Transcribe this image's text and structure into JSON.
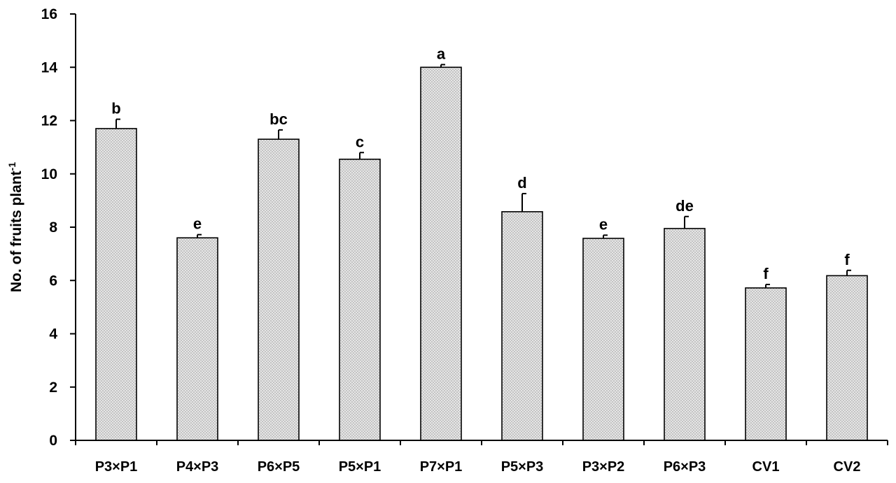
{
  "chart_data": {
    "type": "bar",
    "categories": [
      "P3×P1",
      "P4×P3",
      "P6×P5",
      "P5×P1",
      "P7×P1",
      "P5×P3",
      "P3×P2",
      "P6×P3",
      "CV1",
      "CV2"
    ],
    "values": [
      11.7,
      7.6,
      11.3,
      10.55,
      14.0,
      8.58,
      7.58,
      7.95,
      5.72,
      6.18
    ],
    "errors": [
      0.35,
      0.12,
      0.35,
      0.25,
      0.1,
      0.68,
      0.12,
      0.45,
      0.13,
      0.2
    ],
    "significance_letters": [
      "b",
      "e",
      "bc",
      "c",
      "a",
      "d",
      "e",
      "de",
      "f",
      "f"
    ],
    "xlabel": "",
    "ylabel": "No. of fruits plant",
    "ylabel_superscript": "-1",
    "ylim": [
      0,
      16
    ],
    "yticks": [
      0,
      2,
      4,
      6,
      8,
      10,
      12,
      14,
      16
    ],
    "grid": false,
    "legend": "none",
    "colors": {
      "bar_fill": "#d9d9d9",
      "bar_stroke": "#000000",
      "axis": "#000000"
    }
  }
}
